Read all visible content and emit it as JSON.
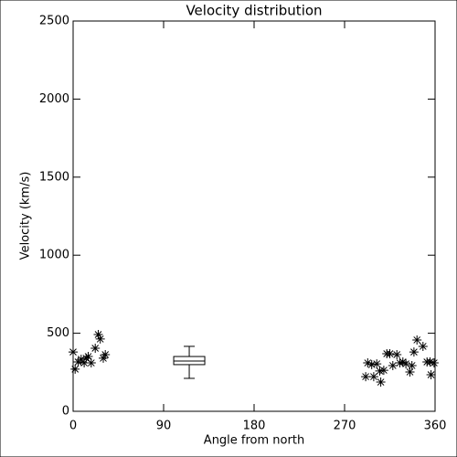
{
  "chart_data": {
    "type": "scatter",
    "title": "Velocity distribution",
    "x_label": "Angle from north",
    "y_label": "Velocity (km/s)",
    "xlim": [
      0,
      360
    ],
    "xticks": [
      0,
      90,
      180,
      270,
      360
    ],
    "ylim": [
      0,
      2500
    ],
    "yticks": [
      0,
      500,
      1000,
      1500,
      2000,
      2500
    ],
    "color": "#000000",
    "x": [
      0,
      2,
      5,
      8,
      11,
      13,
      15,
      18,
      22,
      25,
      27,
      30,
      32,
      291,
      293,
      297,
      299,
      302,
      305,
      306,
      309,
      312,
      315,
      318,
      322,
      325,
      328,
      331,
      335,
      337,
      339,
      342,
      348,
      352,
      355,
      356,
      359
    ],
    "y": [
      380,
      270,
      316,
      333,
      310,
      340,
      351,
      310,
      404,
      492,
      463,
      340,
      363,
      222,
      310,
      299,
      222,
      304,
      258,
      187,
      263,
      369,
      369,
      293,
      363,
      310,
      316,
      304,
      252,
      293,
      380,
      457,
      416,
      316,
      316,
      234,
      310
    ],
    "box": {
      "x": 115.5,
      "min": 211,
      "q1": 299,
      "median": 322,
      "q3": 351,
      "max": 416
    }
  }
}
